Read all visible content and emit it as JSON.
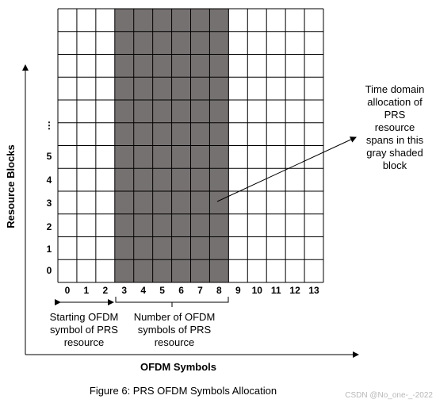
{
  "colors": {
    "shade": "#767171",
    "grid": "#000000",
    "background": "#ffffff"
  },
  "grid": {
    "columns": 14,
    "rows": 12,
    "shaded_start_symbol": 3,
    "shaded_end_symbol": 8
  },
  "x_axis": {
    "label": "OFDM Symbols",
    "ticks": [
      "0",
      "1",
      "2",
      "3",
      "4",
      "5",
      "6",
      "7",
      "8",
      "9",
      "10",
      "11",
      "12",
      "13"
    ]
  },
  "y_axis": {
    "label": "Resource Blocks",
    "ticks": [
      "0",
      "1",
      "2",
      "3",
      "4",
      "5",
      "⋮"
    ]
  },
  "annotations": {
    "start_label": [
      "Starting OFDM",
      "symbol of PRS",
      "resource"
    ],
    "number_label": [
      "Number of OFDM",
      "symbols of PRS",
      "resource"
    ],
    "callout": [
      "Time domain",
      "allocation of",
      "PRS",
      "resource",
      "spans in this",
      "gray shaded",
      "block"
    ]
  },
  "caption": "Figure 6: PRS OFDM Symbols Allocation",
  "watermark": "CSDN @No_one-_-2022"
}
